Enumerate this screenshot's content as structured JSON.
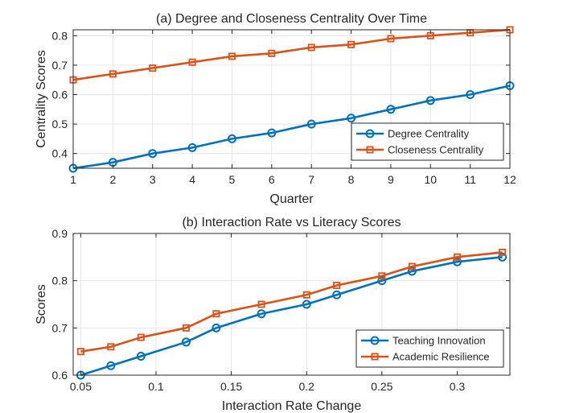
{
  "chart_data": [
    {
      "type": "line",
      "title": "(a) Degree and Closeness Centrality Over Time",
      "xlabel": "Quarter",
      "ylabel": "Centrality Scores",
      "xlim": [
        1,
        12
      ],
      "ylim": [
        0.35,
        0.82
      ],
      "x_ticks": [
        1,
        2,
        3,
        4,
        5,
        6,
        7,
        8,
        9,
        10,
        11,
        12
      ],
      "y_ticks": [
        0.4,
        0.5,
        0.6,
        0.7,
        0.8
      ],
      "grid": true,
      "legend_position": "bottom-right",
      "x": [
        1,
        2,
        3,
        4,
        5,
        6,
        7,
        8,
        9,
        10,
        11,
        12
      ],
      "series": [
        {
          "name": "Degree Centrality",
          "marker": "circle",
          "color": "#0072BD",
          "values": [
            0.35,
            0.37,
            0.4,
            0.42,
            0.45,
            0.47,
            0.5,
            0.52,
            0.55,
            0.58,
            0.6,
            0.63
          ]
        },
        {
          "name": "Closeness Centrality",
          "marker": "square",
          "color": "#D95319",
          "values": [
            0.65,
            0.67,
            0.69,
            0.71,
            0.73,
            0.74,
            0.76,
            0.77,
            0.79,
            0.8,
            0.81,
            0.82
          ]
        }
      ]
    },
    {
      "type": "line",
      "title": "(b) Interaction Rate vs Literacy Scores",
      "xlabel": "Interaction Rate Change",
      "ylabel": "Scores",
      "xlim": [
        0.045,
        0.335
      ],
      "ylim": [
        0.6,
        0.9
      ],
      "x_ticks": [
        0.05,
        0.1,
        0.15,
        0.2,
        0.25,
        0.3
      ],
      "y_ticks": [
        0.6,
        0.7,
        0.8,
        0.9
      ],
      "grid": true,
      "legend_position": "bottom-right",
      "x": [
        0.05,
        0.07,
        0.09,
        0.12,
        0.14,
        0.17,
        0.2,
        0.22,
        0.25,
        0.27,
        0.3,
        0.33
      ],
      "series": [
        {
          "name": "Teaching Innovation",
          "marker": "circle",
          "color": "#0072BD",
          "values": [
            0.6,
            0.62,
            0.64,
            0.67,
            0.7,
            0.73,
            0.75,
            0.77,
            0.8,
            0.82,
            0.84,
            0.85
          ]
        },
        {
          "name": "Academic Resilience",
          "marker": "square",
          "color": "#D95319",
          "values": [
            0.65,
            0.66,
            0.68,
            0.7,
            0.73,
            0.75,
            0.77,
            0.79,
            0.81,
            0.83,
            0.85,
            0.86
          ]
        }
      ]
    }
  ]
}
